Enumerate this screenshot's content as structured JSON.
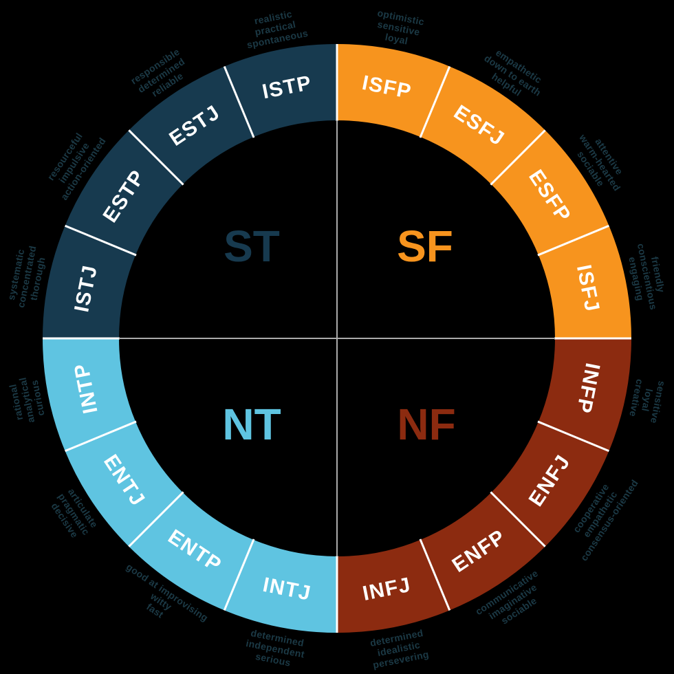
{
  "diagram": {
    "name": "MBTI personality type wheel",
    "background_color": "#000000",
    "separator_color": "#FFFFFF",
    "axis_line_color": "#ABABAB",
    "type_label_color": "#FFFFFF",
    "trait_text_color": "#1B3945",
    "quadrants": [
      {
        "code": "ST",
        "color": "#173A4F"
      },
      {
        "code": "SF",
        "color": "#F7941E"
      },
      {
        "code": "NT",
        "color": "#5FC4E1"
      },
      {
        "code": "NF",
        "color": "#8C2B10"
      }
    ],
    "segments": [
      {
        "type": "ISFP",
        "quadrant": "SF",
        "traits": [
          "optimistic",
          "sensitive",
          "loyal"
        ]
      },
      {
        "type": "ESFJ",
        "quadrant": "SF",
        "traits": [
          "empathetic",
          "down to earth",
          "helpful"
        ]
      },
      {
        "type": "ESFP",
        "quadrant": "SF",
        "traits": [
          "attentive",
          "warm-hearted",
          "sociable"
        ]
      },
      {
        "type": "ISFJ",
        "quadrant": "SF",
        "traits": [
          "friendly",
          "conscientious",
          "engaging"
        ]
      },
      {
        "type": "INFP",
        "quadrant": "NF",
        "traits": [
          "sensitive",
          "loyal",
          "creative"
        ]
      },
      {
        "type": "ENFJ",
        "quadrant": "NF",
        "traits": [
          "cooperative",
          "empathetic",
          "consensus-oriented"
        ]
      },
      {
        "type": "ENFP",
        "quadrant": "NF",
        "traits": [
          "communicative",
          "imaginative",
          "sociable"
        ]
      },
      {
        "type": "INFJ",
        "quadrant": "NF",
        "traits": [
          "determined",
          "idealistic",
          "persevering"
        ]
      },
      {
        "type": "INTJ",
        "quadrant": "NT",
        "traits": [
          "determined",
          "independent",
          "serious"
        ]
      },
      {
        "type": "ENTP",
        "quadrant": "NT",
        "traits": [
          "good at improvising",
          "witty",
          "fast"
        ]
      },
      {
        "type": "ENTJ",
        "quadrant": "NT",
        "traits": [
          "articulate",
          "pragmatic",
          "decisive"
        ]
      },
      {
        "type": "INTP",
        "quadrant": "NT",
        "traits": [
          "rational",
          "analytical",
          "curious"
        ]
      },
      {
        "type": "ISTJ",
        "quadrant": "ST",
        "traits": [
          "systematic",
          "concentrated",
          "thorough"
        ]
      },
      {
        "type": "ESTP",
        "quadrant": "ST",
        "traits": [
          "resourceful",
          "impulsive",
          "action-oriented"
        ]
      },
      {
        "type": "ESTJ",
        "quadrant": "ST",
        "traits": [
          "responsible",
          "determined",
          "reliable"
        ]
      },
      {
        "type": "ISTP",
        "quadrant": "ST",
        "traits": [
          "realistic",
          "practical",
          "spontaneous"
        ]
      }
    ]
  }
}
